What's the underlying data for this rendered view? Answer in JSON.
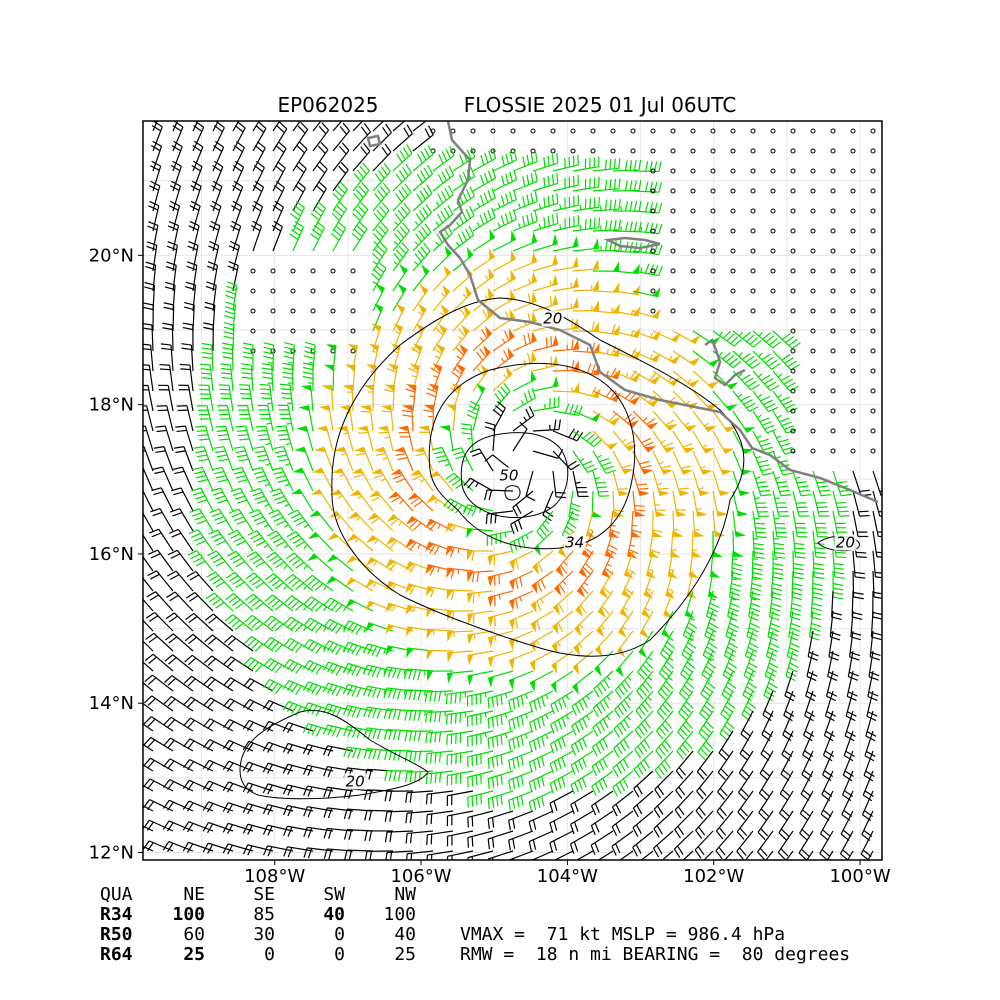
{
  "header": {
    "storm_id": "EP062025",
    "storm_title": "FLOSSIE 2025 01 Jul 06UTC"
  },
  "map": {
    "lon_range": [
      -109.8,
      -99.7
    ],
    "lat_range": [
      11.9,
      21.8
    ],
    "lon_ticks": [
      {
        "value": -108,
        "label": "108°W"
      },
      {
        "value": -106,
        "label": "106°W"
      },
      {
        "value": -104,
        "label": "104°W"
      },
      {
        "value": -102,
        "label": "102°W"
      },
      {
        "value": -100,
        "label": "100°W"
      }
    ],
    "lat_ticks": [
      {
        "value": 12,
        "label": "12°N"
      },
      {
        "value": 14,
        "label": "14°N"
      },
      {
        "value": 16,
        "label": "16°N"
      },
      {
        "value": 18,
        "label": "18°N"
      },
      {
        "value": 20,
        "label": "20°N"
      }
    ],
    "grid": true,
    "storm_center": {
      "lon": -104.6,
      "lat": 17.2
    },
    "contour_labels": [
      {
        "text": "20",
        "lon": -104.2,
        "lat": 19.1
      },
      {
        "text": "20",
        "lon": -100.2,
        "lat": 16.1
      },
      {
        "text": "20",
        "lon": -106.9,
        "lat": 12.9
      },
      {
        "text": "34",
        "lon": -103.9,
        "lat": 16.1
      },
      {
        "text": "50",
        "lon": -104.8,
        "lat": 17.0
      }
    ],
    "colors": {
      "coast": "#808080",
      "barb_low": "#000000",
      "barb_34": "#00dd00",
      "barb_50": "#f0b400",
      "barb_64": "#ff6a00",
      "contour": "#000000"
    }
  },
  "wind_radii": {
    "headers": [
      "QUA",
      "NE",
      "SE",
      "SW",
      "NW"
    ],
    "rows": [
      {
        "label": "R34",
        "values": [
          "100",
          "85",
          "40",
          "100"
        ]
      },
      {
        "label": "R50",
        "values": [
          "60",
          "30",
          "0",
          "40"
        ]
      },
      {
        "label": "R64",
        "values": [
          "25",
          "0",
          "0",
          "25"
        ]
      }
    ]
  },
  "storm_stats": {
    "line1": "VMAX =  71 kt MSLP = 986.4 hPa",
    "line2": "RMW =  18 n mi BEARING =  80 degrees"
  }
}
